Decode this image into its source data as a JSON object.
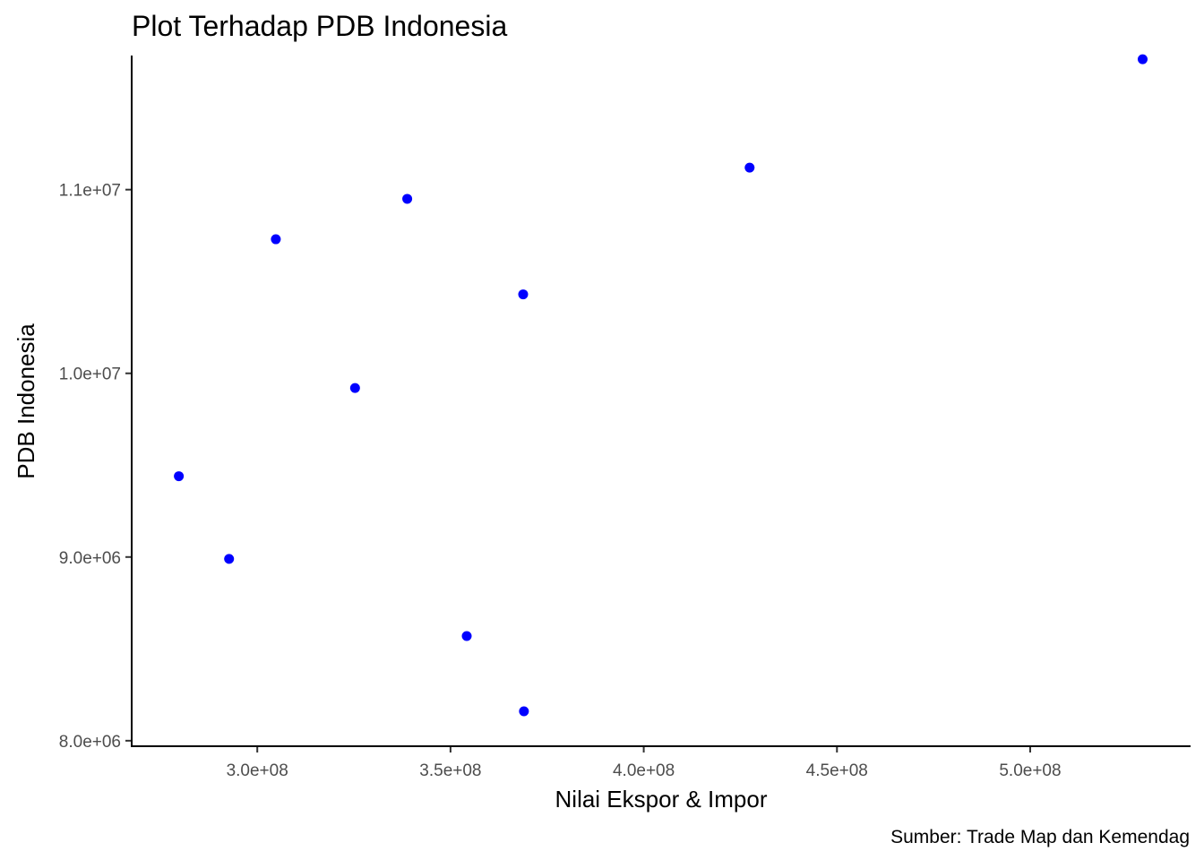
{
  "chart_data": {
    "type": "scatter",
    "title": "Plot Terhadap PDB Indonesia",
    "xlabel": "Nilai Ekspor & Impor",
    "ylabel": "PDB Indonesia",
    "caption": "Sumber:  Trade Map dan Kemendag",
    "xlim": [
      267500000,
      541500000
    ],
    "ylim": [
      7970000,
      11730000
    ],
    "x_ticks": [
      {
        "value": 300000000,
        "label": "3.0e+08"
      },
      {
        "value": 350000000,
        "label": "3.5e+08"
      },
      {
        "value": 400000000,
        "label": "4.0e+08"
      },
      {
        "value": 450000000,
        "label": "4.5e+08"
      },
      {
        "value": 500000000,
        "label": "5.0e+08"
      }
    ],
    "y_ticks": [
      {
        "value": 8000000,
        "label": "8.0e+06"
      },
      {
        "value": 9000000,
        "label": "9.0e+06"
      },
      {
        "value": 10000000,
        "label": "1.0e+07"
      },
      {
        "value": 11000000,
        "label": "1.1e+07"
      }
    ],
    "grid": false,
    "point_color": "#0000ff",
    "points": [
      {
        "x": 279700000,
        "y": 9440000
      },
      {
        "x": 292700000,
        "y": 8990000
      },
      {
        "x": 304800000,
        "y": 10730000
      },
      {
        "x": 325300000,
        "y": 9920000
      },
      {
        "x": 338800000,
        "y": 10950000
      },
      {
        "x": 354200000,
        "y": 8570000
      },
      {
        "x": 368800000,
        "y": 10430000
      },
      {
        "x": 369000000,
        "y": 8160000
      },
      {
        "x": 427400000,
        "y": 11120000
      },
      {
        "x": 529100000,
        "y": 11710000
      }
    ]
  }
}
